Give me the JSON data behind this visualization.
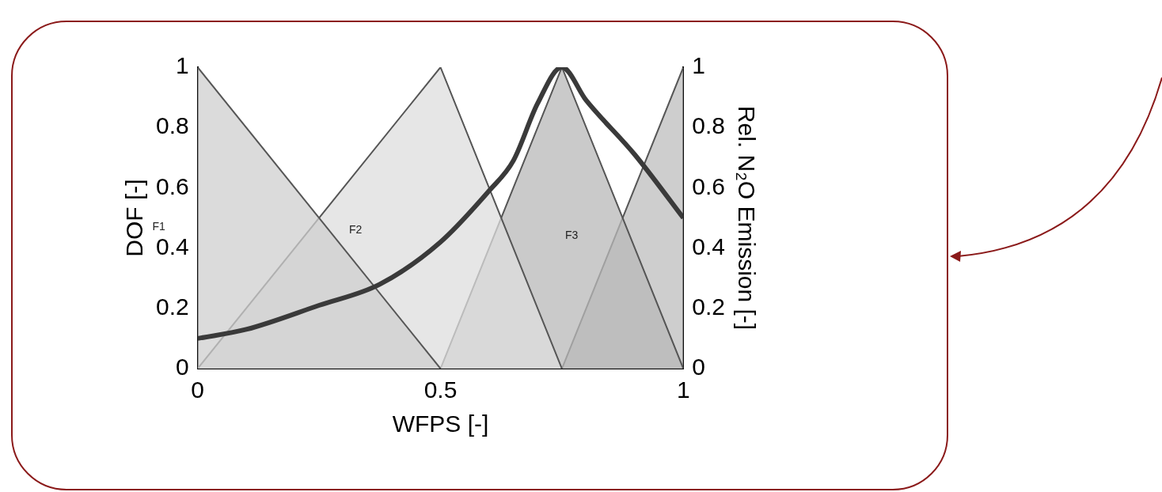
{
  "chart_data": {
    "type": "area",
    "xlabel": "WFPS [-]",
    "ylabel": "DOF [-]",
    "y2label": "Rel. N₂O Emission [-]",
    "xlim": [
      0,
      1
    ],
    "xticks": [
      0,
      0.5,
      1
    ],
    "ylim": [
      0,
      1
    ],
    "yticks": [
      0,
      0.2,
      0.4,
      0.6,
      0.8,
      1
    ],
    "y2lim": [
      0,
      1
    ],
    "y2ticks": [
      0,
      0.2,
      0.4,
      0.6,
      0.8,
      1
    ],
    "grid": false,
    "series": [
      {
        "color": "#cfcfcf",
        "x": [
          0,
          0.5
        ],
        "values": [
          1,
          0
        ]
      },
      {
        "color": "#dedede",
        "x": [
          0,
          0.5,
          0.75
        ],
        "values": [
          0,
          1,
          0
        ]
      },
      {
        "color": "#b8b8b8",
        "x": [
          0.5,
          0.75,
          1
        ],
        "values": [
          0,
          1,
          0
        ]
      },
      {
        "color": "#bdbdbd",
        "x": [
          0.75,
          1
        ],
        "values": [
          0,
          1
        ]
      },
      {
        "type": "line",
        "axis": "y2",
        "color": "#3a3a3a",
        "x": [
          0,
          0.1,
          0.25,
          0.375,
          0.5,
          0.6,
          0.65,
          0.7,
          0.75,
          0.8,
          0.9,
          1
        ],
        "values": [
          0.1,
          0.13,
          0.21,
          0.28,
          0.42,
          0.59,
          0.69,
          0.88,
          1,
          0.89,
          0.71,
          0.5
        ]
      }
    ],
    "annotations": [
      "F1",
      "F2",
      "F3"
    ]
  }
}
